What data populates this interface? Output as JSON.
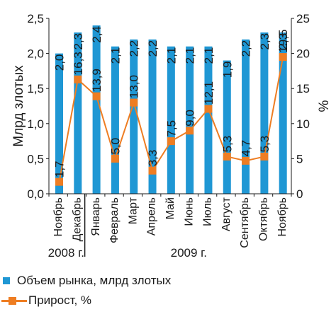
{
  "chart_data": {
    "type": "bar+line",
    "categories": [
      "Ноябрь",
      "Декабрь",
      "Январь",
      "Февраль",
      "Март",
      "Апрель",
      "Май",
      "Июнь",
      "Июль",
      "Август",
      "Сентябрь",
      "Октябрь",
      "Ноябрь"
    ],
    "series": [
      {
        "name": "Объем рынка, млрд злотых",
        "type": "bar",
        "axis": "left",
        "values": [
          2.0,
          2.3,
          2.4,
          2.1,
          2.2,
          2.2,
          2.1,
          2.1,
          2.1,
          1.9,
          2.2,
          2.3,
          2.3
        ],
        "labels": [
          "2,0",
          "2,3",
          "2,4",
          "2,1",
          "2,2",
          "2,2",
          "2,1",
          "2,1",
          "2,1",
          "1,9",
          "2,2",
          "2,3",
          "2,3"
        ]
      },
      {
        "name": "Прирост, %",
        "type": "line",
        "axis": "right",
        "values": [
          1.7,
          16.3,
          13.9,
          5.0,
          13.0,
          3.3,
          7.5,
          9.0,
          12.1,
          5.3,
          4.7,
          5.3,
          19.5
        ],
        "labels": [
          "1,7",
          "16,3",
          "13,9",
          "5,0",
          "13,0",
          "3,3",
          "7,5",
          "9,0",
          "12,1",
          "5,3",
          "4,7",
          "5,3",
          "19,5"
        ]
      }
    ],
    "ylabel": "Млрд злотых",
    "y2label": "%",
    "ylim": [
      0,
      2.5
    ],
    "y2lim": [
      0,
      25
    ],
    "yticks": [
      "0,0",
      "0,5",
      "1,0",
      "1,5",
      "2,0",
      "2,5"
    ],
    "y2ticks": [
      "0",
      "5",
      "10",
      "15",
      "20",
      "25"
    ],
    "year_groups": [
      {
        "label": "2008 г.",
        "span": 2
      },
      {
        "label": "2009 г.",
        "span": 11
      }
    ],
    "colors": {
      "bar": "#1f97d4",
      "line": "#ee7d22",
      "marker": "#ee7d22",
      "text": "#1a1a1a"
    },
    "grid": false,
    "legend_position": "bottom-left"
  }
}
